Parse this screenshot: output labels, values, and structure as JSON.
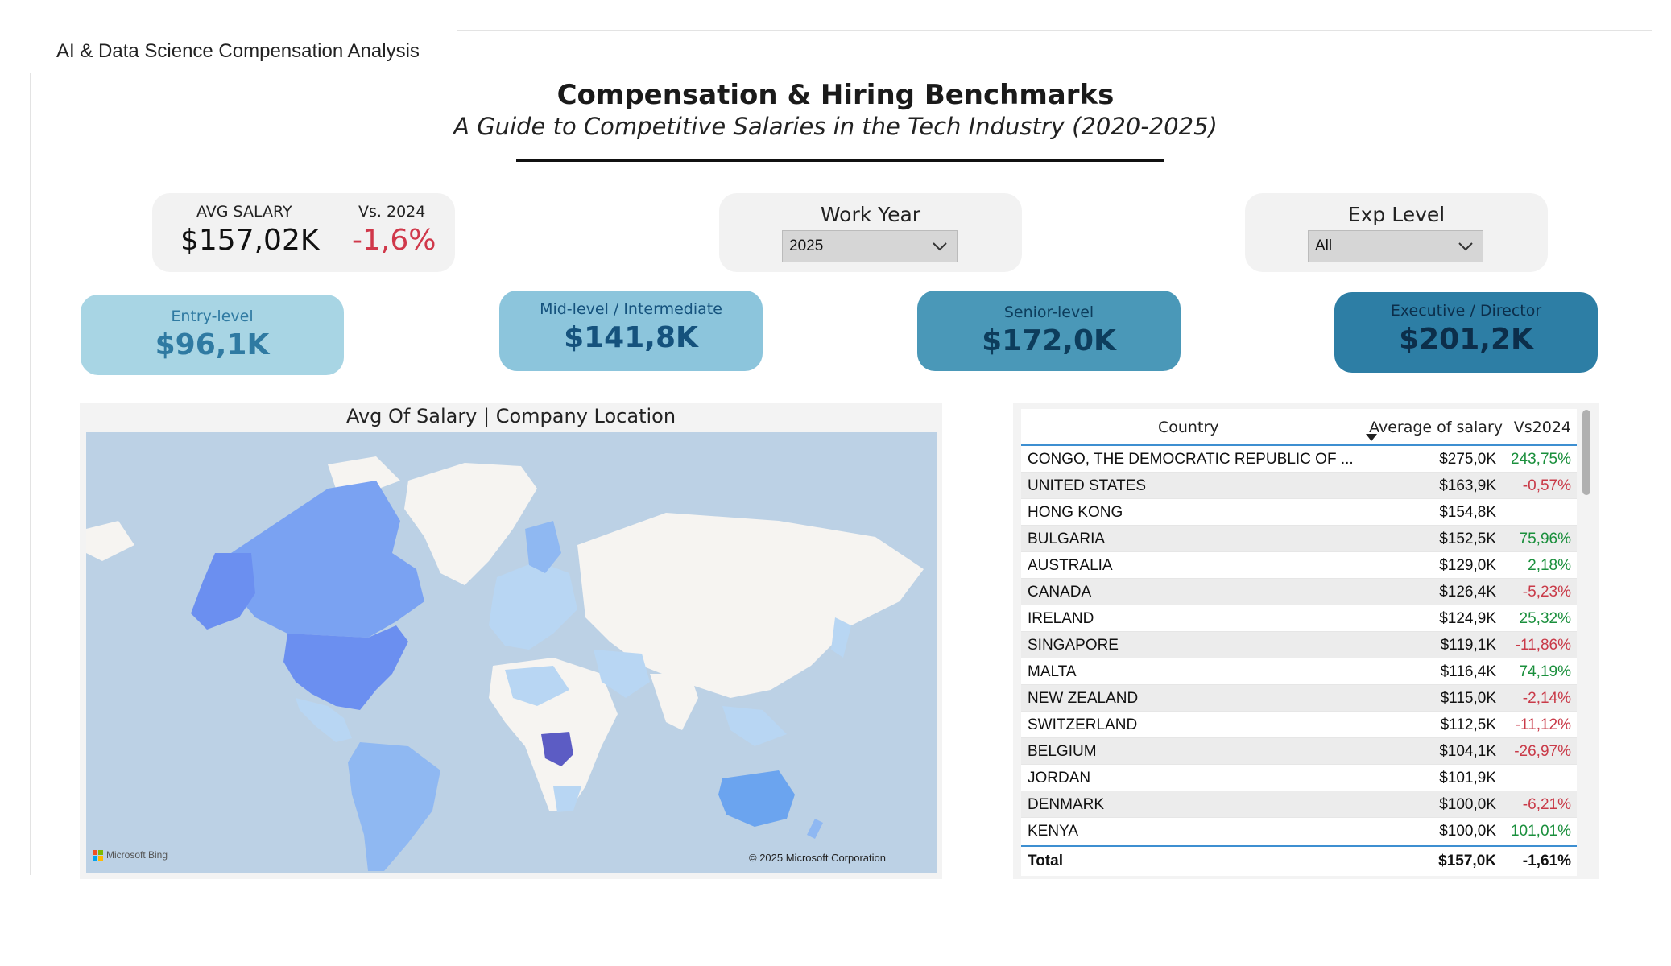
{
  "report": {
    "tab_title": "AI & Data Science Compensation Analysis",
    "title": "Compensation & Hiring Benchmarks",
    "subtitle": "A Guide to Competitive Salaries in the Tech Industry (2020-2025)"
  },
  "kpi": {
    "avg_label": "AVG SALARY",
    "avg_value": "$157,02K",
    "vs_label": "Vs. 2024",
    "vs_value": "-1,6%"
  },
  "slicers": {
    "work_year": {
      "label": "Work Year",
      "selected": "2025"
    },
    "exp_level": {
      "label": "Exp Level",
      "selected": "All"
    }
  },
  "levels": [
    {
      "label": "Entry-level",
      "value": "$96,1K",
      "bg": "#a8d5e4",
      "fg": "#2f7aa2"
    },
    {
      "label": "Mid-level / Intermediate",
      "value": "$141,8K",
      "bg": "#8cc5dc",
      "fg": "#15527d"
    },
    {
      "label": "Senior-level",
      "value": "$172,0K",
      "bg": "#4a98b8",
      "fg": "#0d3d5c"
    },
    {
      "label": "Executive / Director",
      "value": "$201,2K",
      "bg": "#2d7ea5",
      "fg": "#0c2e4a"
    }
  ],
  "map": {
    "title": "Avg Of Salary | Company Location",
    "logo_text": "Microsoft Bing",
    "copyright": "© 2025 Microsoft Corporation",
    "colors": {
      "ocean": "#bcd1e5",
      "land": "#f6f4f1",
      "high": "#6b8ff0",
      "mid": "#8fb8f2",
      "low": "#b8d6f3",
      "top": "#5c5cc4"
    }
  },
  "table": {
    "headers": {
      "country": "Country",
      "salary": "Average of salary",
      "vs": "Vs2024"
    },
    "rows": [
      {
        "country": "CONGO, THE DEMOCRATIC REPUBLIC OF ...",
        "salary": "$275,0K",
        "vs": "243,75%",
        "trend": "pos"
      },
      {
        "country": "UNITED STATES",
        "salary": "$163,9K",
        "vs": "-0,57%",
        "trend": "neg"
      },
      {
        "country": "HONG KONG",
        "salary": "$154,8K",
        "vs": "",
        "trend": ""
      },
      {
        "country": "BULGARIA",
        "salary": "$152,5K",
        "vs": "75,96%",
        "trend": "pos"
      },
      {
        "country": "AUSTRALIA",
        "salary": "$129,0K",
        "vs": "2,18%",
        "trend": "pos"
      },
      {
        "country": "CANADA",
        "salary": "$126,4K",
        "vs": "-5,23%",
        "trend": "neg"
      },
      {
        "country": "IRELAND",
        "salary": "$124,9K",
        "vs": "25,32%",
        "trend": "pos"
      },
      {
        "country": "SINGAPORE",
        "salary": "$119,1K",
        "vs": "-11,86%",
        "trend": "neg"
      },
      {
        "country": "MALTA",
        "salary": "$116,4K",
        "vs": "74,19%",
        "trend": "pos"
      },
      {
        "country": "NEW ZEALAND",
        "salary": "$115,0K",
        "vs": "-2,14%",
        "trend": "neg"
      },
      {
        "country": "SWITZERLAND",
        "salary": "$112,5K",
        "vs": "-11,12%",
        "trend": "neg"
      },
      {
        "country": "BELGIUM",
        "salary": "$104,1K",
        "vs": "-26,97%",
        "trend": "neg"
      },
      {
        "country": "JORDAN",
        "salary": "$101,9K",
        "vs": "",
        "trend": ""
      },
      {
        "country": "DENMARK",
        "salary": "$100,0K",
        "vs": "-6,21%",
        "trend": "neg"
      },
      {
        "country": "KENYA",
        "salary": "$100,0K",
        "vs": "101,01%",
        "trend": "pos"
      }
    ],
    "total": {
      "label": "Total",
      "salary": "$157,0K",
      "vs": "-1,61%"
    }
  }
}
